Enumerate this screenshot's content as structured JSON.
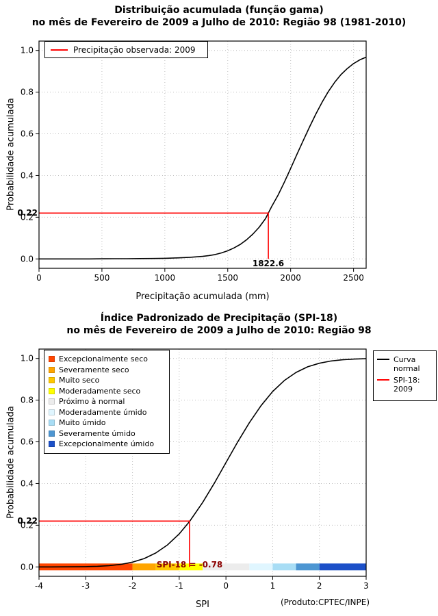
{
  "page": {
    "background": "#ffffff",
    "credit": "(Produto:CPTEC/INPE)"
  },
  "chart_data": [
    {
      "type": "line",
      "title": "Distribuição acumulada (função gama)",
      "subtitle": "no mês de Fevereiro de 2009 a Julho de 2010: Região 98 (1981-2010)",
      "xlabel": "Precipitação acumulada (mm)",
      "ylabel": "Probabilidade acumulada",
      "xlim": [
        0,
        2600
      ],
      "ylim": [
        0,
        1
      ],
      "grid": "dotted",
      "legend_position": "top-left",
      "xticks": {
        "values": [
          0,
          500,
          1000,
          1500,
          2000,
          2500
        ],
        "labels": [
          "0",
          "500",
          "1000",
          "1500",
          "2000",
          "2500"
        ]
      },
      "yticks": {
        "values": [
          0,
          0.2,
          0.4,
          0.6,
          0.8,
          1.0
        ],
        "labels": [
          "0.0",
          "0.2",
          "0.4",
          "0.6",
          "0.8",
          "1.0"
        ]
      },
      "legend": {
        "items": [
          {
            "label": "Precipitação observada: 2009",
            "color": "#FF0000",
            "type": "line"
          }
        ]
      },
      "marker": {
        "x": 1822.6,
        "y": 0.22,
        "color": "#FF0000",
        "x_label": "1822.6",
        "y_label": "0.22"
      },
      "series": [
        {
          "name": "Distribuição gama acumulada",
          "color": "#000000",
          "points": [
            [
              0,
              0
            ],
            [
              200,
              0
            ],
            [
              400,
              0
            ],
            [
              520,
              0.0005
            ],
            [
              600,
              0.001
            ],
            [
              700,
              0.001
            ],
            [
              800,
              0.0015
            ],
            [
              900,
              0.002
            ],
            [
              1000,
              0.003
            ],
            [
              1100,
              0.005
            ],
            [
              1200,
              0.008
            ],
            [
              1300,
              0.012
            ],
            [
              1350,
              0.016
            ],
            [
              1400,
              0.021
            ],
            [
              1450,
              0.029
            ],
            [
              1500,
              0.039
            ],
            [
              1550,
              0.053
            ],
            [
              1600,
              0.07
            ],
            [
              1650,
              0.092
            ],
            [
              1700,
              0.119
            ],
            [
              1750,
              0.152
            ],
            [
              1800,
              0.193
            ],
            [
              1822.6,
              0.22
            ],
            [
              1850,
              0.252
            ],
            [
              1900,
              0.306
            ],
            [
              1950,
              0.368
            ],
            [
              2000,
              0.434
            ],
            [
              2050,
              0.502
            ],
            [
              2100,
              0.568
            ],
            [
              2150,
              0.633
            ],
            [
              2200,
              0.695
            ],
            [
              2250,
              0.752
            ],
            [
              2300,
              0.803
            ],
            [
              2350,
              0.847
            ],
            [
              2400,
              0.884
            ],
            [
              2450,
              0.913
            ],
            [
              2500,
              0.937
            ],
            [
              2550,
              0.955
            ],
            [
              2600,
              0.968
            ]
          ]
        }
      ]
    },
    {
      "type": "line",
      "title": "Índice Padronizado de Precipitação (SPI-18)",
      "subtitle": "no mês de Fevereiro de 2009 a Julho de 2010: Região 98",
      "xlabel": "SPI",
      "ylabel": "Probabilidade acumulada",
      "xlim": [
        -4,
        3
      ],
      "ylim": [
        0,
        1
      ],
      "grid": "dotted",
      "legend_position": "top-right",
      "xticks": {
        "values": [
          -4,
          -3,
          -2,
          -1,
          0,
          1,
          2,
          3
        ],
        "labels": [
          "-4",
          "-3",
          "-2",
          "-1",
          "0",
          "1",
          "2",
          "3"
        ]
      },
      "yticks": {
        "values": [
          0,
          0.2,
          0.4,
          0.6,
          0.8,
          1.0
        ],
        "labels": [
          "0.0",
          "0.2",
          "0.4",
          "0.6",
          "0.8",
          "1.0"
        ]
      },
      "legend": {
        "items": [
          {
            "label": "Curva normal",
            "color": "#000000",
            "type": "line"
          },
          {
            "label": "SPI-18: 2009",
            "color": "#FF0000",
            "type": "line"
          }
        ]
      },
      "marker": {
        "x": -0.78,
        "y": 0.22,
        "color": "#FF0000",
        "x_label": "SPI-18 = -0.78",
        "y_label": "0.22"
      },
      "series": [
        {
          "name": "Curva normal",
          "color": "#000000",
          "points": [
            [
              -4,
              0.0
            ],
            [
              -3.75,
              0.0001
            ],
            [
              -3.5,
              0.0002
            ],
            [
              -3.25,
              0.0006
            ],
            [
              -3,
              0.0013
            ],
            [
              -2.75,
              0.003
            ],
            [
              -2.5,
              0.0062
            ],
            [
              -2.25,
              0.0122
            ],
            [
              -2,
              0.0228
            ],
            [
              -1.75,
              0.0401
            ],
            [
              -1.5,
              0.0668
            ],
            [
              -1.25,
              0.1056
            ],
            [
              -1,
              0.1587
            ],
            [
              -0.78,
              0.2177
            ],
            [
              -0.5,
              0.3085
            ],
            [
              -0.25,
              0.4013
            ],
            [
              0,
              0.5
            ],
            [
              0.25,
              0.5987
            ],
            [
              0.5,
              0.6915
            ],
            [
              0.75,
              0.7734
            ],
            [
              1,
              0.8413
            ],
            [
              1.25,
              0.8944
            ],
            [
              1.5,
              0.9332
            ],
            [
              1.75,
              0.9599
            ],
            [
              2,
              0.9772
            ],
            [
              2.25,
              0.9878
            ],
            [
              2.5,
              0.9938
            ],
            [
              2.75,
              0.997
            ],
            [
              3,
              0.9987
            ]
          ]
        }
      ],
      "category_bar": {
        "y": 0,
        "segments": [
          {
            "from": -4,
            "to": -2,
            "color": "#FF4500",
            "label": "Excepcionalmente seco"
          },
          {
            "from": -2,
            "to": -1.5,
            "color": "#FFA500",
            "label": "Severamente seco"
          },
          {
            "from": -1.5,
            "to": -1,
            "color": "#FFC800",
            "label": "Muito seco"
          },
          {
            "from": -1,
            "to": -0.5,
            "color": "#FFFF00",
            "label": "Moderadamente seco"
          },
          {
            "from": -0.5,
            "to": 0.5,
            "color": "#ECECEC",
            "label": "Próximo à normal"
          },
          {
            "from": 0.5,
            "to": 1,
            "color": "#E0F6FF",
            "label": "Moderadamente úmido"
          },
          {
            "from": 1,
            "to": 1.5,
            "color": "#A8DDF5",
            "label": "Muito úmido"
          },
          {
            "from": 1.5,
            "to": 2,
            "color": "#4D96D2",
            "label": "Severamente úmido"
          },
          {
            "from": 2,
            "to": 3,
            "color": "#1C50C8",
            "label": "Excepcionalmente úmido"
          }
        ]
      }
    }
  ]
}
